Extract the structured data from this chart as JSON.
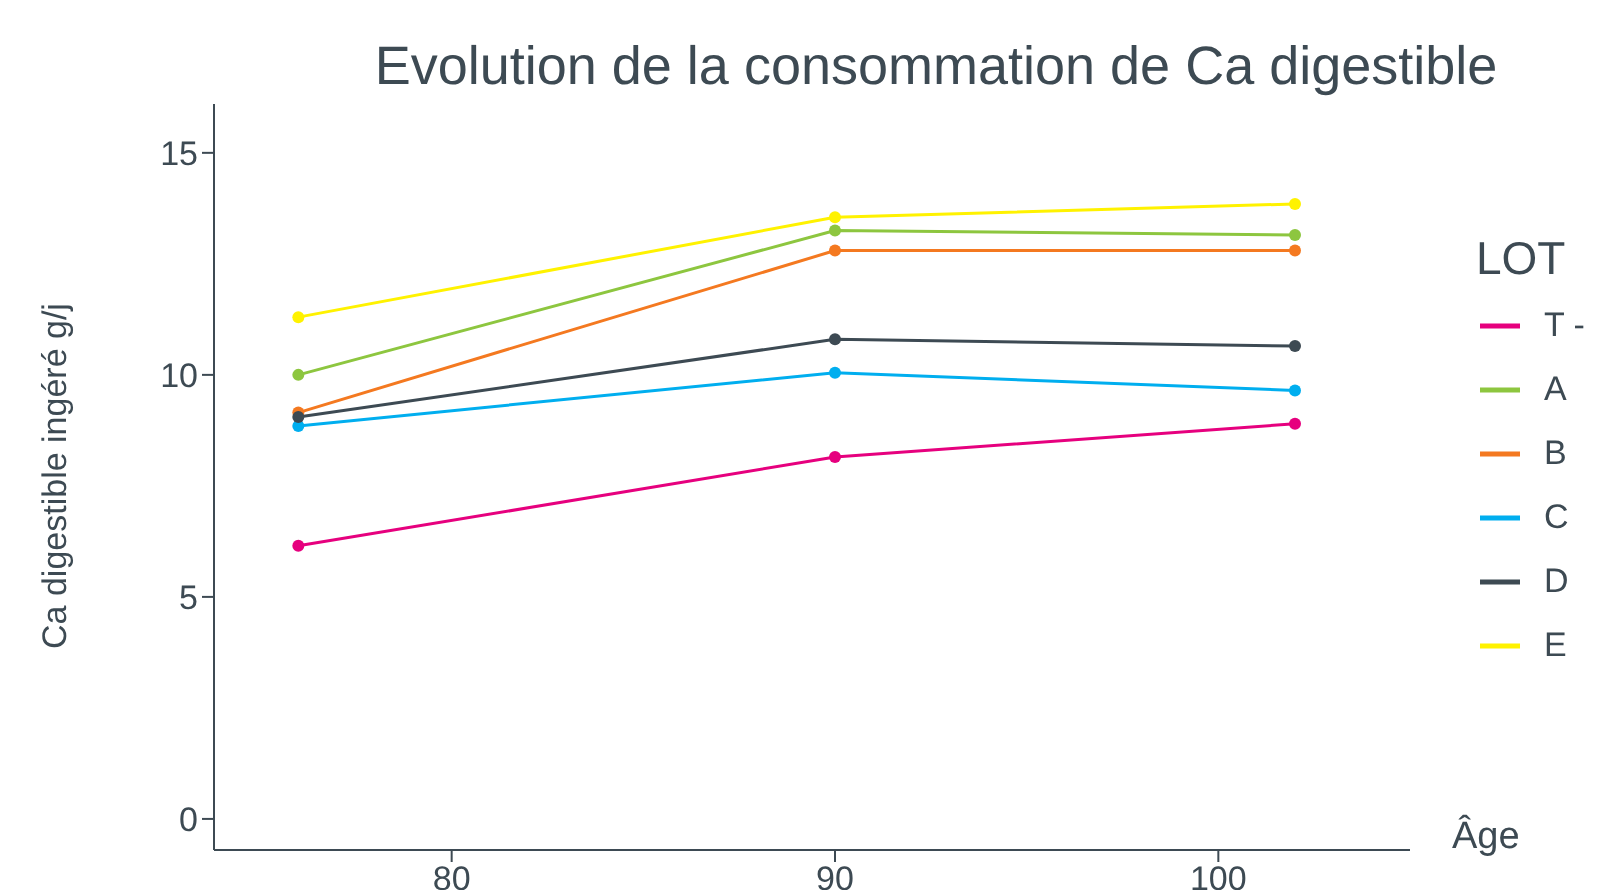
{
  "chart_data": {
    "type": "line",
    "title": "Evolution de la consommation de Ca digestible",
    "xlabel": "Âge",
    "ylabel": "Ca digestible ingéré g/j",
    "legend_title": "LOT",
    "x": [
      76,
      90,
      102
    ],
    "series": [
      {
        "name": "T -",
        "color": "#e6007e",
        "values": [
          6.15,
          8.15,
          8.9
        ]
      },
      {
        "name": "A",
        "color": "#8dc63f",
        "values": [
          10.0,
          13.25,
          13.15
        ]
      },
      {
        "name": "B",
        "color": "#f47920",
        "values": [
          9.15,
          12.8,
          12.8
        ]
      },
      {
        "name": "C",
        "color": "#00aeef",
        "values": [
          8.85,
          10.05,
          9.65
        ]
      },
      {
        "name": "D",
        "color": "#3d4a53",
        "values": [
          9.05,
          10.8,
          10.65
        ]
      },
      {
        "name": "E",
        "color": "#fff200",
        "values": [
          11.3,
          13.55,
          13.85
        ]
      }
    ],
    "xlim": [
      73.8,
      105
    ],
    "xticks": [
      80,
      90,
      100
    ],
    "ylim": [
      -0.7,
      16.1
    ],
    "yticks": [
      0,
      5,
      10,
      15
    ],
    "grid": false,
    "legend": "right",
    "marker": "circle",
    "line_style": "solid"
  }
}
